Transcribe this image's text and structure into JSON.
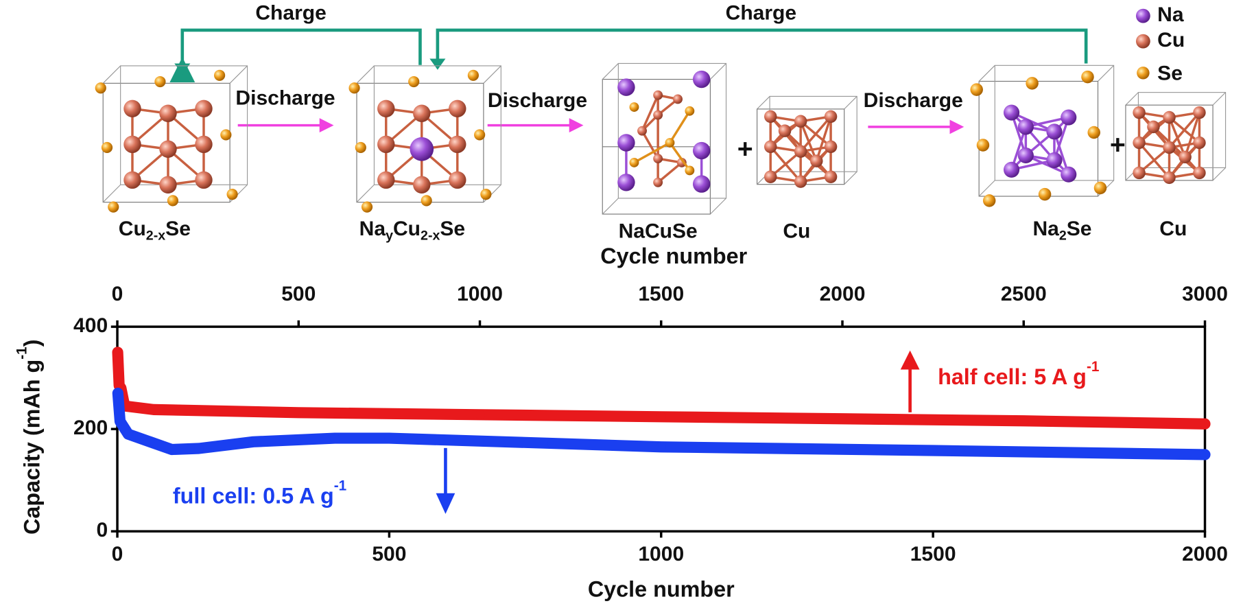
{
  "diagram": {
    "charge_left": "Charge",
    "charge_right": "Charge",
    "discharge": [
      "Discharge",
      "Discharge",
      "Discharge"
    ],
    "plus": [
      "+",
      "+"
    ],
    "legend": [
      "Na",
      "Cu",
      "Se"
    ],
    "formulas": [
      [
        {
          "text": "Cu"
        },
        {
          "sub": "2-x"
        },
        {
          "text": "Se"
        }
      ],
      [
        {
          "text": "Na"
        },
        {
          "sub": "y"
        },
        {
          "text": "Cu"
        },
        {
          "sub": "2-x"
        },
        {
          "text": "Se"
        }
      ],
      [
        {
          "text": "NaCuSe"
        }
      ],
      [
        {
          "text": "Cu"
        }
      ],
      [
        {
          "text": "Na"
        },
        {
          "sub": "2"
        },
        {
          "text": "Se"
        }
      ],
      [
        {
          "text": "Cu"
        }
      ]
    ]
  },
  "chart_data": {
    "type": "line",
    "xlabel": "Cycle number",
    "x2label": "Cycle number",
    "ylabel": {
      "text": "Capacity (mAh g",
      "sup": "-1",
      "end": ")"
    },
    "xlim": [
      0,
      2000
    ],
    "xticks": [
      0,
      500,
      1000,
      1500,
      2000
    ],
    "x2lim": [
      0,
      3000
    ],
    "x2ticks": [
      0,
      500,
      1000,
      1500,
      2000,
      2500,
      3000
    ],
    "ylim": [
      0,
      400
    ],
    "yticks": [
      0,
      200,
      400
    ],
    "series": [
      {
        "name": "half cell",
        "axis": "x2",
        "color": "#e8191c",
        "x": [
          1,
          5,
          10,
          20,
          100,
          500,
          1000,
          1500,
          2000,
          2500,
          3000
        ],
        "values": [
          350,
          285,
          280,
          245,
          238,
          232,
          228,
          224,
          220,
          216,
          210
        ]
      },
      {
        "name": "full cell",
        "axis": "x",
        "color": "#1a3ff0",
        "x": [
          1,
          5,
          20,
          60,
          100,
          150,
          250,
          400,
          500,
          800,
          1000,
          1500,
          2000
        ],
        "values": [
          270,
          215,
          190,
          175,
          160,
          162,
          175,
          182,
          182,
          172,
          165,
          158,
          150
        ]
      }
    ],
    "annotations": [
      {
        "text": "half cell: 5 A g",
        "sup": "-1"
      },
      {
        "text": "full cell: 0.5 A g",
        "sup": "-1"
      }
    ]
  }
}
